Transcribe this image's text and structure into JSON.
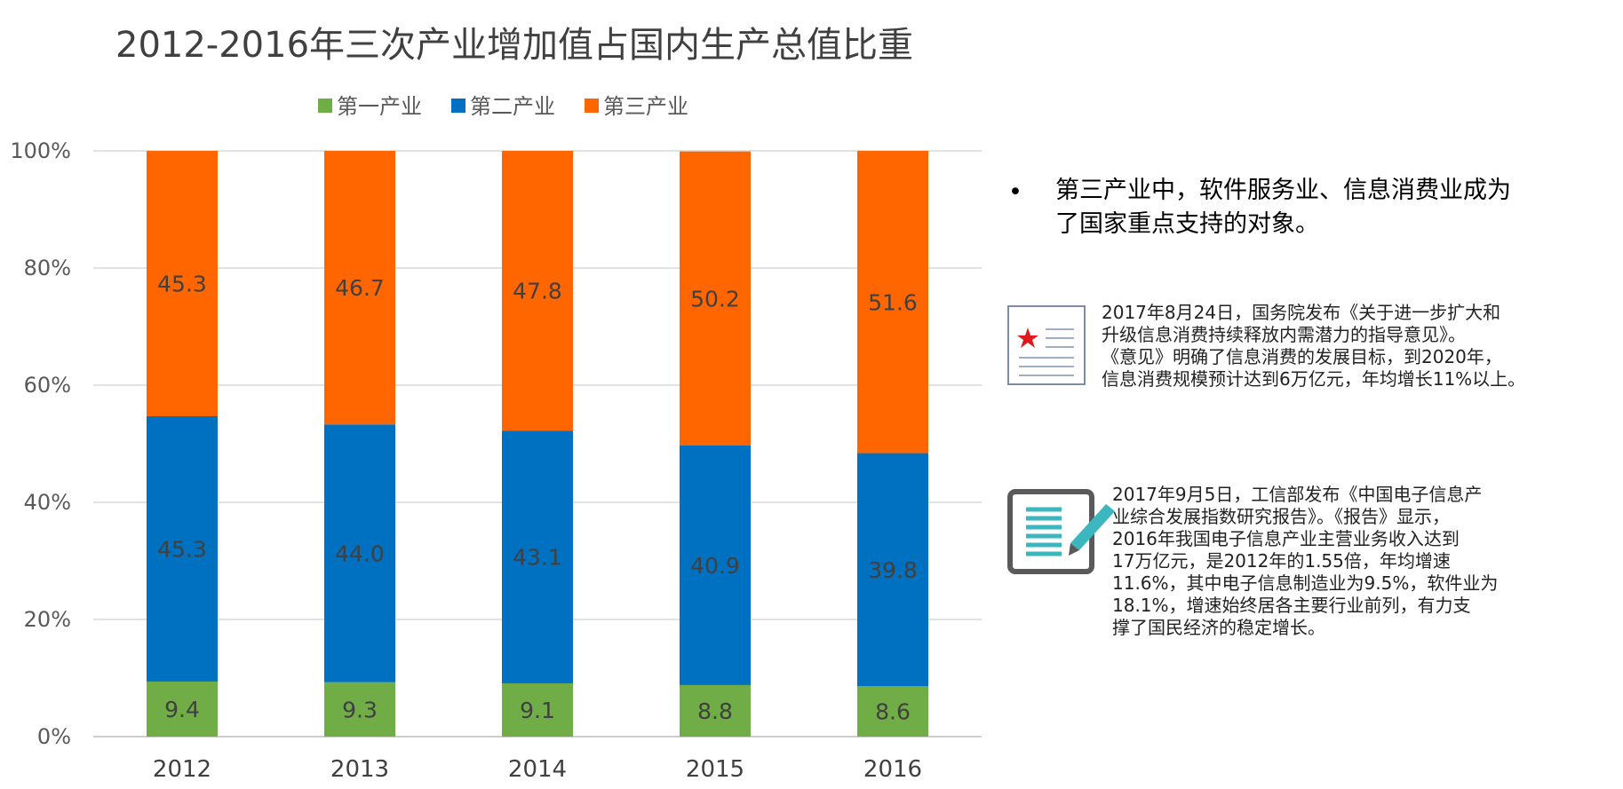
{
  "chart_data": {
    "type": "bar",
    "stacked": true,
    "title": "2012-2016年三次产业增加值占国内生产总值比重",
    "categories": [
      "2012",
      "2013",
      "2014",
      "2015",
      "2016"
    ],
    "series": [
      {
        "name": "第一产业",
        "color": "#70AD47",
        "values": [
          9.4,
          9.3,
          9.1,
          8.8,
          8.6
        ]
      },
      {
        "name": "第二产业",
        "color": "#0070C0",
        "values": [
          45.3,
          44.0,
          43.1,
          40.9,
          39.8
        ]
      },
      {
        "name": "第三产业",
        "color": "#FF6600",
        "values": [
          45.3,
          46.7,
          47.8,
          50.2,
          51.6
        ]
      }
    ],
    "y_ticks": [
      "0%",
      "20%",
      "40%",
      "60%",
      "80%",
      "100%"
    ],
    "ylim": [
      0,
      100
    ],
    "legend_position": "top",
    "grid": true
  },
  "side": {
    "bullet": "•",
    "headline_line1": "第三产业中，软件服务业、信息消费业成为",
    "headline_line2": "了国家重点支持的对象。",
    "note1_lines": [
      "2017年8月24日，国务院发布《关于进一步扩大和",
      "升级信息消费持续释放内需潜力的指导意见》。",
      "《意见》明确了信息消费的发展目标，到2020年，",
      "信息消费规模预计达到6万亿元，年均增长11%以上。"
    ],
    "note2_lines": [
      "2017年9月5日，工信部发布《中国电子信息产",
      "业综合发展指数研究报告》。《报告》显示，",
      "2016年我国电子信息产业主营业务收入达到",
      "17万亿元，是2012年的1.55倍，年均增速",
      "11.6%，其中电子信息制造业为9.5%，软件业为",
      "18.1%，增速始终居各主要行业前列，有力支",
      "撑了国民经济的稳定增长。"
    ],
    "icon1": "document-star-icon",
    "icon2": "clipboard-pencil-icon"
  }
}
